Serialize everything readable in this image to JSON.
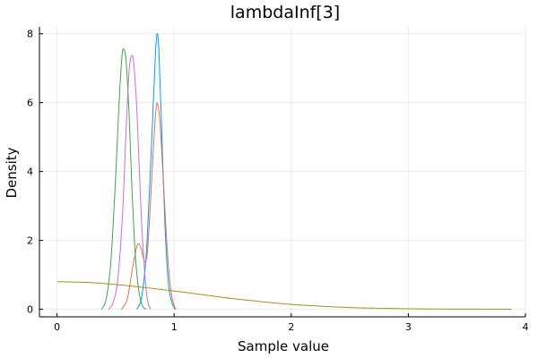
{
  "chart_data": {
    "type": "line",
    "title": "lambdaInf[3]",
    "xlabel": "Sample value",
    "ylabel": "Density",
    "xlim": [
      -0.15,
      4.0
    ],
    "ylim": [
      -0.22,
      8.2
    ],
    "xticks": [
      0,
      1,
      2,
      3,
      4
    ],
    "yticks": [
      0,
      2,
      4,
      6,
      8
    ],
    "grid": true,
    "legend": "none",
    "series": [
      {
        "color": "#009AFA",
        "x": [
          0.68,
          0.72,
          0.76,
          0.79,
          0.82,
          0.84,
          0.855,
          0.87,
          0.89,
          0.92,
          0.95,
          0.98,
          1.01
        ],
        "y": [
          0.0,
          0.3,
          1.5,
          3.5,
          5.8,
          7.4,
          8.0,
          7.5,
          5.6,
          2.6,
          0.8,
          0.2,
          0.0
        ]
      },
      {
        "color": "#E36F47",
        "x": [
          0.55,
          0.6,
          0.64,
          0.68,
          0.7,
          0.72,
          0.74,
          0.755,
          0.77,
          0.79,
          0.82,
          0.845,
          0.86,
          0.88,
          0.91,
          0.94,
          0.97,
          1.0,
          1.02
        ],
        "y": [
          0.0,
          0.3,
          1.1,
          1.8,
          1.9,
          1.75,
          1.45,
          1.38,
          1.6,
          2.6,
          4.5,
          5.8,
          5.95,
          5.4,
          3.6,
          1.8,
          0.6,
          0.1,
          0.0
        ]
      },
      {
        "color": "#3EA44E",
        "x": [
          0.38,
          0.42,
          0.46,
          0.5,
          0.53,
          0.555,
          0.57,
          0.59,
          0.615,
          0.64,
          0.67,
          0.7,
          0.73,
          0.76
        ],
        "y": [
          0.0,
          0.3,
          1.4,
          3.8,
          6.0,
          7.35,
          7.55,
          7.2,
          5.7,
          3.5,
          1.5,
          0.5,
          0.1,
          0.0
        ]
      },
      {
        "color": "#C371D2",
        "x": [
          0.44,
          0.48,
          0.52,
          0.56,
          0.59,
          0.615,
          0.635,
          0.655,
          0.68,
          0.7,
          0.72,
          0.74,
          0.76,
          0.78,
          0.8
        ],
        "y": [
          0.0,
          0.2,
          0.9,
          2.8,
          5.2,
          6.9,
          7.35,
          7.15,
          5.9,
          4.3,
          2.7,
          1.5,
          0.6,
          0.15,
          0.0
        ]
      },
      {
        "color": "#AC8E18",
        "x": [
          0.0,
          0.25,
          0.5,
          0.75,
          1.0,
          1.25,
          1.5,
          1.75,
          2.0,
          2.25,
          2.5,
          2.75,
          3.0,
          3.25,
          3.5,
          3.75,
          3.88
        ],
        "y": [
          0.8,
          0.78,
          0.72,
          0.63,
          0.53,
          0.42,
          0.31,
          0.22,
          0.14,
          0.09,
          0.05,
          0.03,
          0.015,
          0.008,
          0.004,
          0.002,
          0.001
        ]
      }
    ]
  }
}
